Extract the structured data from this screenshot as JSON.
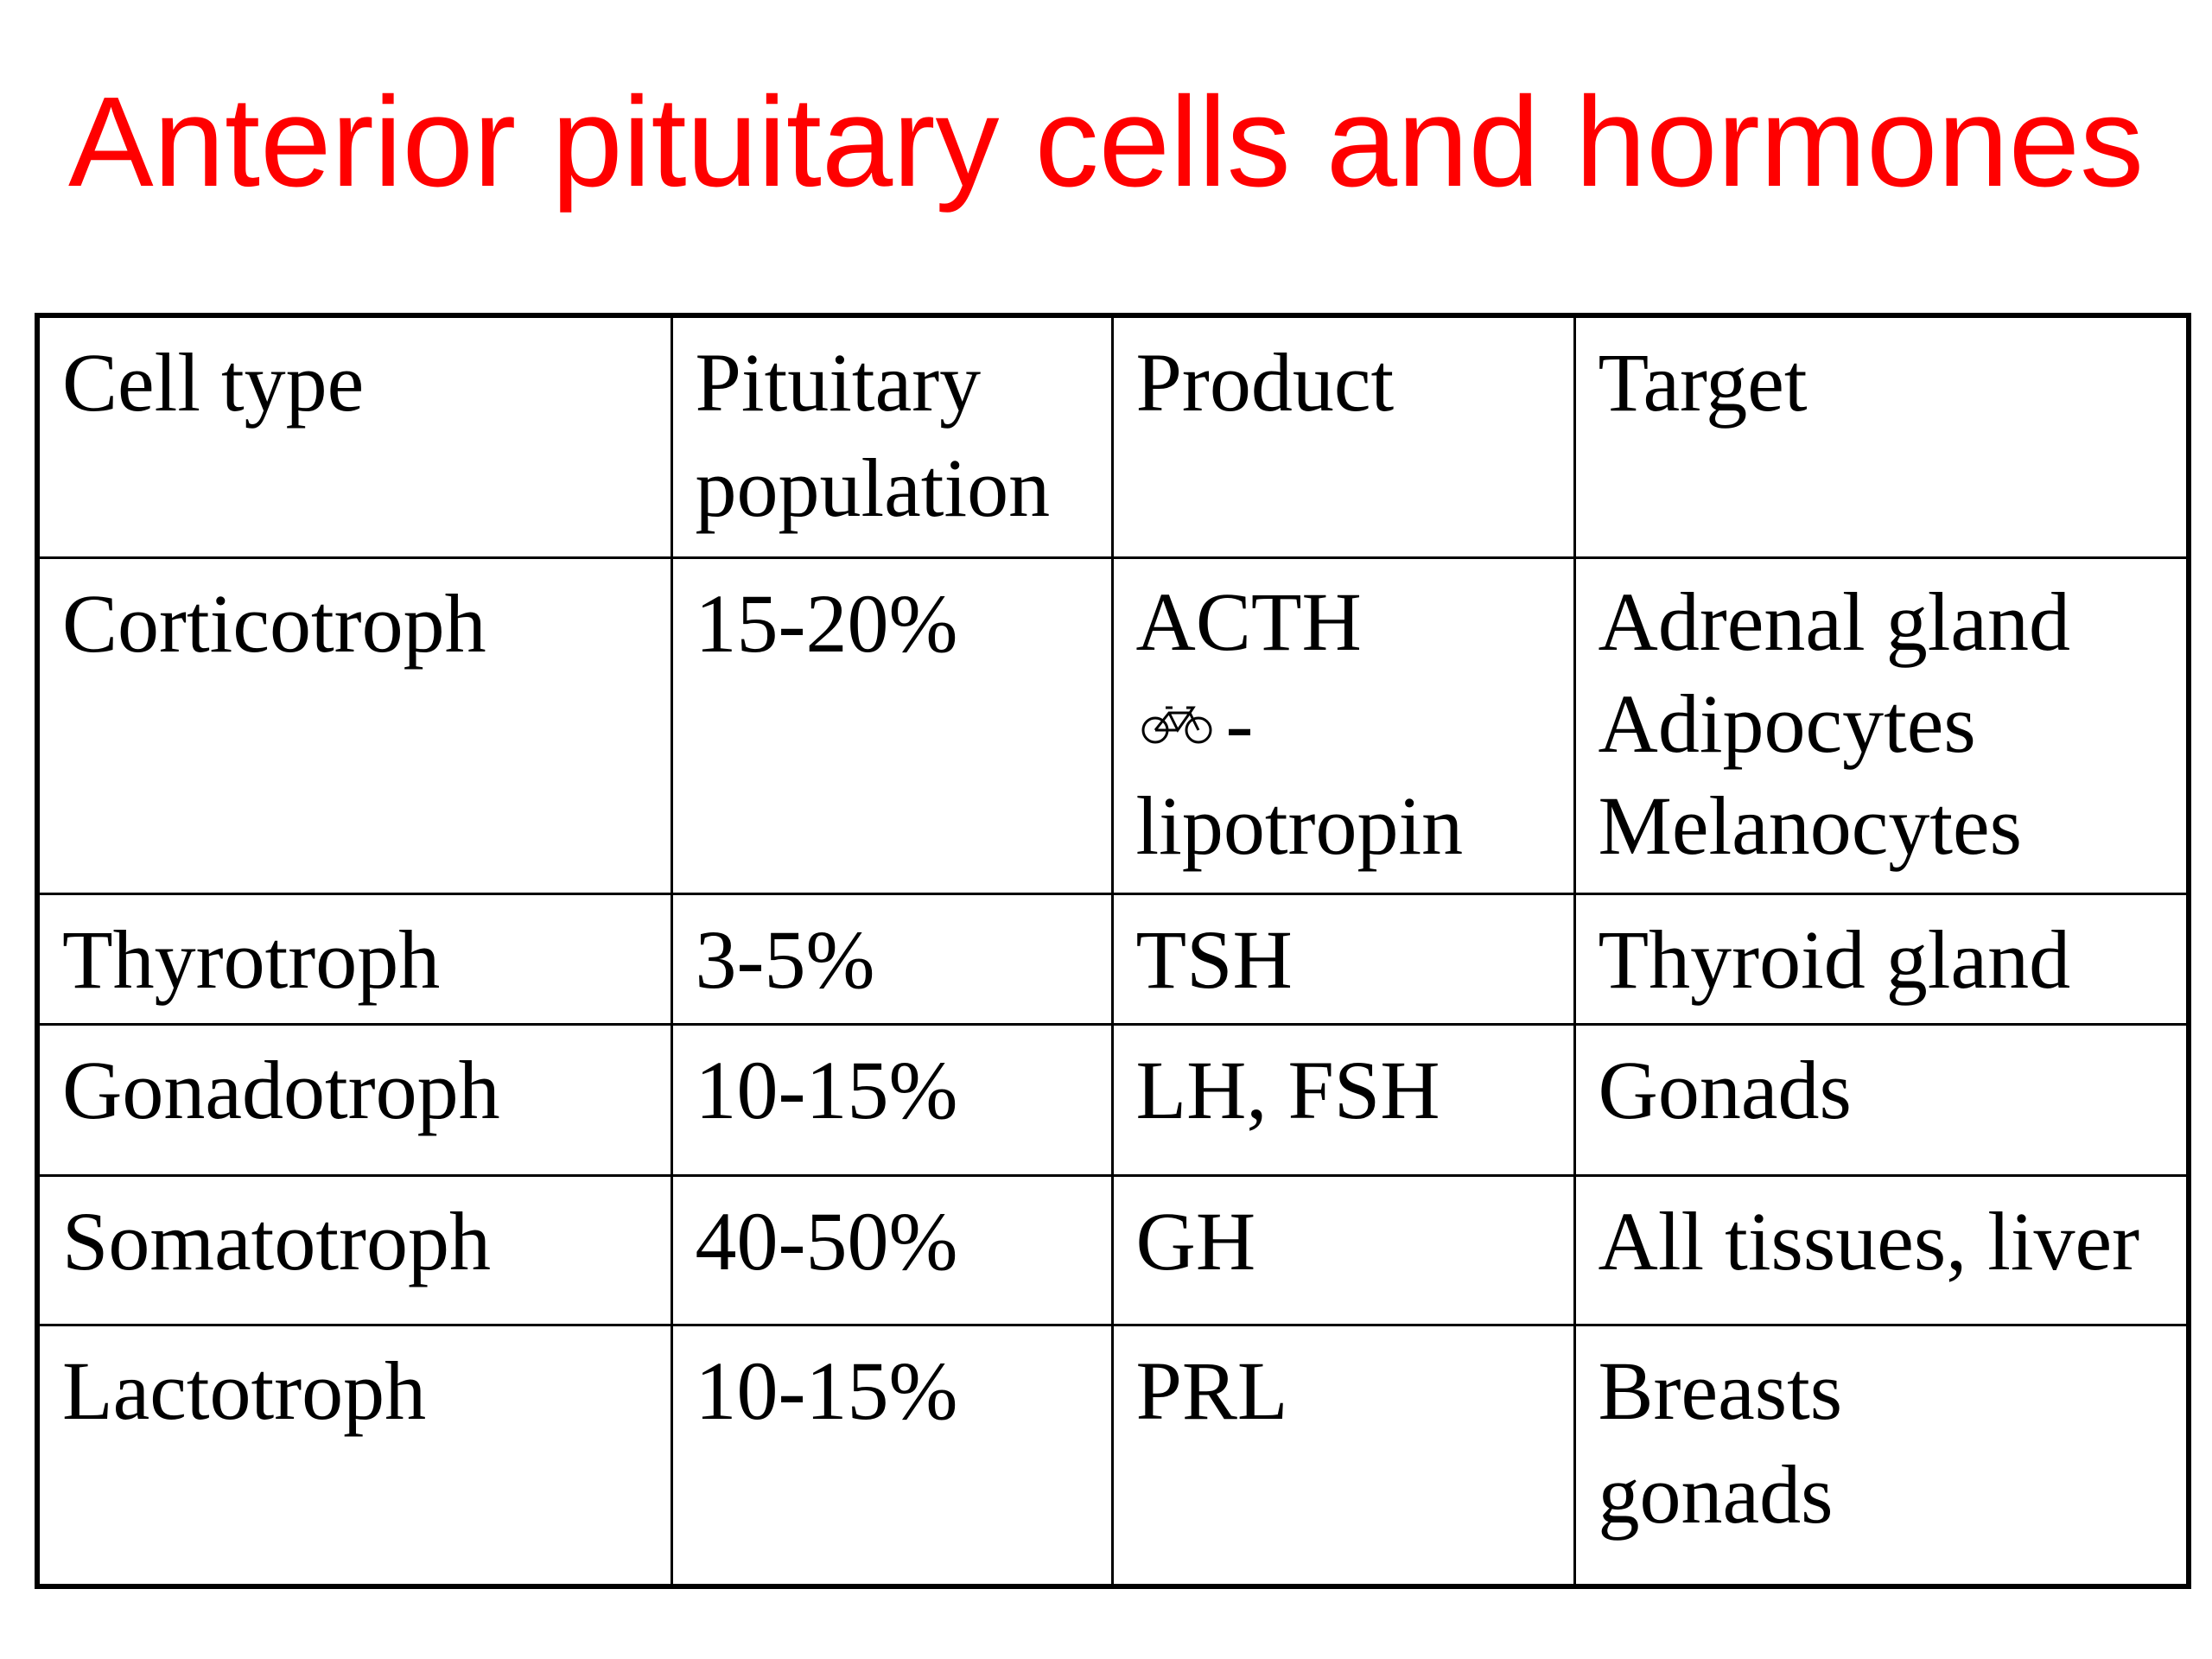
{
  "slide": {
    "title": "Anterior pituitary cells and hormones"
  },
  "table": {
    "headers": {
      "cell_type": "Cell type",
      "population_line1": "Pituitary",
      "population_line2": "population",
      "product": "Product",
      "target": "Target"
    },
    "rows": [
      {
        "cell_type": "Corticotroph",
        "population": "15-20%",
        "product": "ACTH",
        "product_line2_suffix": "-",
        "product_line3": "lipotropin",
        "product_icon": "bicycle-icon",
        "target_line1": "Adrenal gland",
        "target_line2": "Adipocytes",
        "target_line3": "Melanocytes"
      },
      {
        "cell_type": "Thyrotroph",
        "population": "3-5%",
        "product": "TSH",
        "target_line1": "Thyroid gland"
      },
      {
        "cell_type": "Gonadotroph",
        "population": "10-15%",
        "product": "LH, FSH",
        "target_line1": "Gonads"
      },
      {
        "cell_type": "Somatotroph",
        "population": "40-50%",
        "product": "GH",
        "target_line1": "All tissues, liver"
      },
      {
        "cell_type": "Lactotroph",
        "population": "10-15%",
        "product": "PRL",
        "target_line1": "Breasts",
        "target_line2": "gonads"
      }
    ]
  },
  "colors": {
    "title": "#ff0000",
    "text": "#000000",
    "border": "#000000",
    "background": "#ffffff"
  }
}
